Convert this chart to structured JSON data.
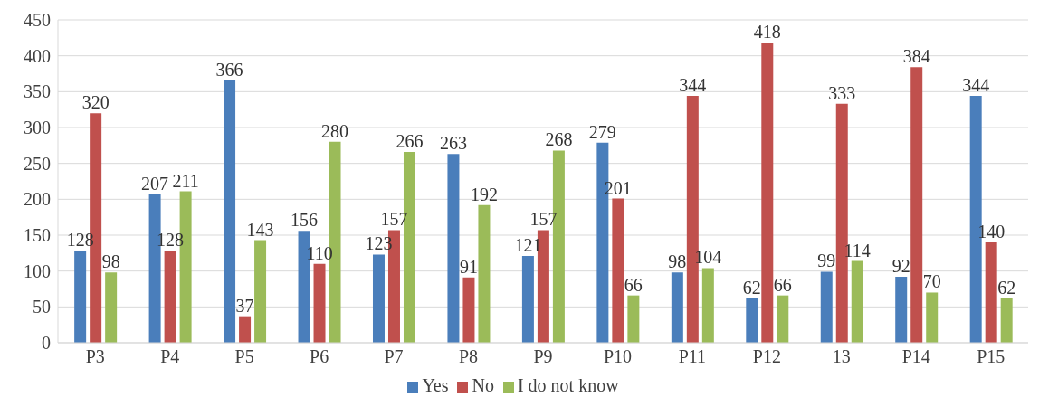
{
  "chart_data": {
    "type": "bar",
    "categories": [
      "P3",
      "P4",
      "P5",
      "P6",
      "P7",
      "P8",
      "P9",
      "P10",
      "P11",
      "P12",
      "13",
      "P14",
      "P15"
    ],
    "series": [
      {
        "name": "Yes",
        "color": "#4a7ebb",
        "values": [
          128,
          207,
          366,
          156,
          123,
          263,
          121,
          279,
          98,
          62,
          99,
          92,
          344
        ]
      },
      {
        "name": "No",
        "color": "#c0504d",
        "values": [
          320,
          128,
          37,
          110,
          157,
          91,
          157,
          201,
          344,
          418,
          333,
          384,
          140
        ]
      },
      {
        "name": "I do not know",
        "color": "#9bbb59",
        "values": [
          98,
          211,
          143,
          280,
          266,
          192,
          268,
          66,
          104,
          66,
          114,
          70,
          62
        ]
      }
    ],
    "ylim": [
      0,
      450
    ],
    "yticks": [
      0,
      50,
      100,
      150,
      200,
      250,
      300,
      350,
      400,
      450
    ],
    "grid": "y",
    "legend": "bottom",
    "data_labels": true
  }
}
